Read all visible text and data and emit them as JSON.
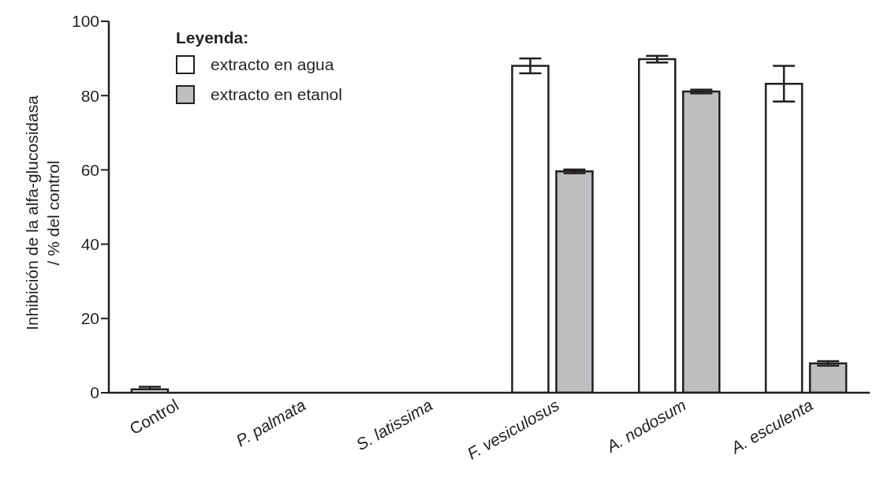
{
  "chart_data": {
    "type": "bar",
    "ylabel": "Inhibición de la alfa-glucosidasa\n/ % del control",
    "legend_title": "Leyenda:",
    "categories": [
      "Control",
      "P. palmata",
      "S. latissima",
      "F. vesiculosus",
      "A. nodosum",
      "A. esculenta"
    ],
    "series": [
      {
        "name": "extracto en agua",
        "color": "#ffffff",
        "values": [
          0.9,
          null,
          null,
          88,
          89.8,
          83.2
        ],
        "errors": [
          [
            0.9,
            1.6
          ],
          null,
          null,
          2,
          0.9,
          4.8
        ]
      },
      {
        "name": "extracto en etanol",
        "color": "#bcbec0",
        "values": [
          null,
          null,
          null,
          59.6,
          81.1,
          7.9
        ],
        "errors": [
          null,
          null,
          null,
          0.5,
          0.5,
          0.6
        ]
      }
    ],
    "ylim": [
      0,
      100
    ],
    "yticks": [
      0,
      20,
      40,
      60,
      80,
      100
    ],
    "grid": false,
    "legend": "top left"
  }
}
